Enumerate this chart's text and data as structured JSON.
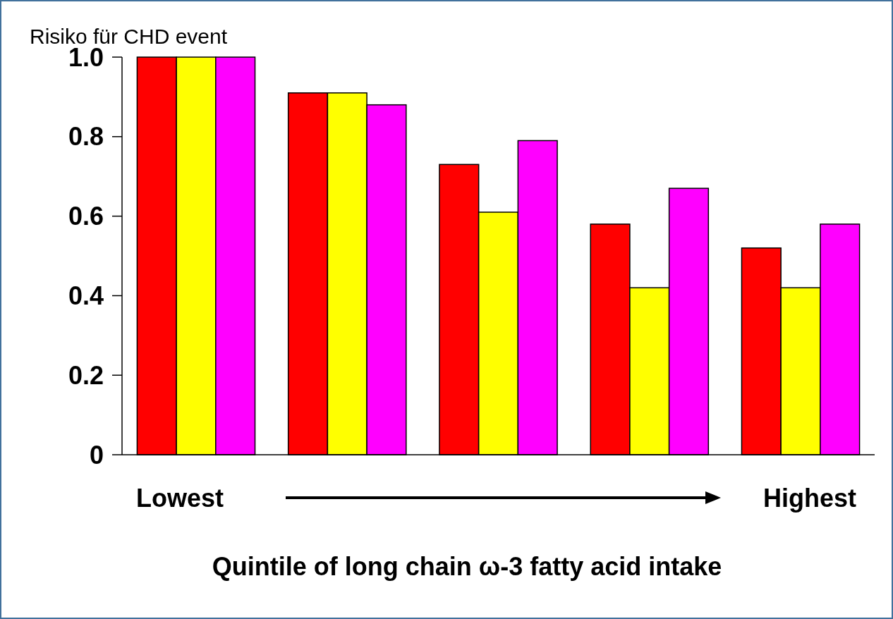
{
  "chart_data": {
    "type": "bar",
    "ylabel": "Risiko für CHD event",
    "xlabel": "Quintile of long chain ω-3 fatty acid intake",
    "categories": [
      null,
      null,
      null,
      null,
      null
    ],
    "series": [
      {
        "color": "#ff0000",
        "values": [
          1.0,
          0.91,
          0.73,
          0.58,
          0.52
        ]
      },
      {
        "color": "#ffff00",
        "values": [
          1.0,
          0.91,
          0.61,
          0.42,
          0.42
        ]
      },
      {
        "color": "#ff00ff",
        "values": [
          1.0,
          0.88,
          0.79,
          0.67,
          0.58
        ]
      }
    ],
    "ylim": [
      0,
      1.0
    ],
    "yticks": [
      0,
      {
        "value": 0.2,
        "label": "0.2"
      },
      {
        "value": 0.4,
        "label": "0.4"
      },
      {
        "value": 0.6,
        "label": "0.6"
      },
      {
        "value": 0.8,
        "label": "0.8"
      },
      {
        "value": 1.0,
        "label": "1.0"
      }
    ],
    "annotations": [
      "Lowest",
      "Highest"
    ]
  }
}
